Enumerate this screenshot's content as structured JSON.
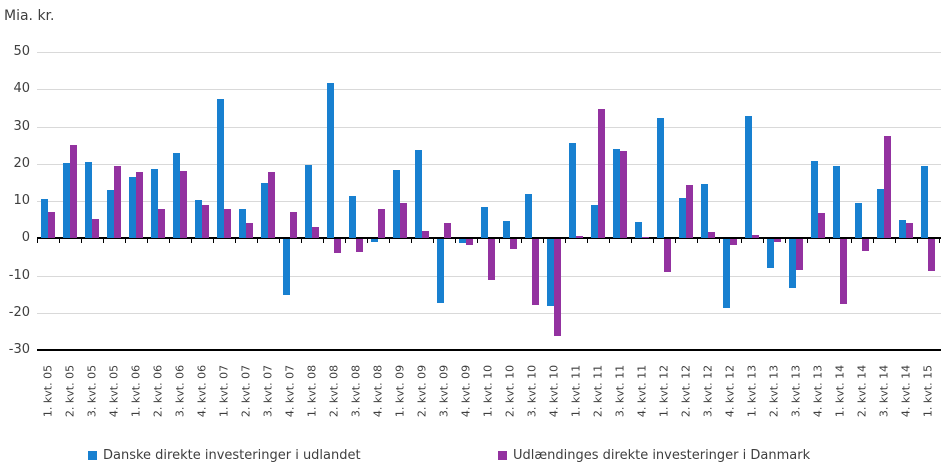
{
  "chart_data": {
    "type": "bar",
    "title": "Mia. kr.",
    "xlabel": "",
    "ylabel": "Mia. kr.",
    "ylim": [
      -30,
      50
    ],
    "y_ticks": [
      50,
      40,
      30,
      20,
      10,
      0,
      -10,
      -20,
      -30
    ],
    "grid": true,
    "legend_position": "bottom",
    "categories": [
      "1. kvt. 05",
      "2. kvt. 05",
      "3. kvt. 05",
      "4. kvt. 05",
      "1. kvt. 06",
      "2. kvt. 06",
      "3. kvt. 06",
      "4. kvt. 06",
      "1. kvt. 07",
      "2. kvt. 07",
      "3. kvt. 07",
      "4. kvt. 07",
      "1. kvt. 08",
      "2. kvt. 08",
      "3. kvt. 08",
      "4. kvt. 08",
      "1. kvt. 09",
      "2. kvt. 09",
      "3. kvt. 09",
      "4. kvt. 09",
      "1. kvt. 10",
      "2. kvt. 10",
      "3. kvt. 10",
      "4. kvt. 10",
      "1. kvt. 11",
      "2. kvt. 11",
      "3. kvt. 11",
      "4. kvt. 11",
      "1. kvt. 12",
      "2. kvt. 12",
      "3. kvt. 12",
      "4. kvt. 12",
      "1. kvt. 13",
      "2. kvt. 13",
      "3. kvt. 13",
      "4. kvt. 13",
      "1. kvt. 14",
      "2. kvt. 14",
      "3. kvt. 14",
      "4. kvt. 14",
      "1. kvt. 15"
    ],
    "series": [
      {
        "name": "Danske direkte investeringer i udlandet",
        "color": "#1880d0",
        "values": [
          10.6,
          20.1,
          20.6,
          13.1,
          16.5,
          18.5,
          23.0,
          10.2,
          37.5,
          7.9,
          14.8,
          -15.0,
          19.8,
          41.8,
          11.5,
          -0.7,
          18.4,
          23.6,
          -17.2,
          -1.0,
          8.3,
          4.6,
          12.0,
          -17.8,
          25.5,
          9.0,
          24.0,
          4.4,
          32.3,
          10.8,
          14.6,
          -18.5,
          32.8,
          -7.8,
          -13.0,
          20.8,
          19.5,
          9.5,
          13.2,
          4.8,
          19.4
        ]
      },
      {
        "name": "Udlændinges direkte investeringer i Danmark",
        "color": "#9332a0",
        "values": [
          7.0,
          25.0,
          5.2,
          19.3,
          17.7,
          7.9,
          18.0,
          9.0,
          7.9,
          4.0,
          17.7,
          7.2,
          3.0,
          -3.7,
          -3.5,
          7.8,
          9.5,
          2.1,
          4.0,
          -1.6,
          -10.8,
          -2.6,
          -17.5,
          -26.0,
          0.7,
          34.8,
          23.4,
          0.2,
          -8.7,
          14.2,
          1.6,
          -1.5,
          0.8,
          -0.7,
          -8.2,
          6.8,
          -17.3,
          -3.2,
          27.5,
          4.1,
          -8.4
        ]
      }
    ]
  }
}
